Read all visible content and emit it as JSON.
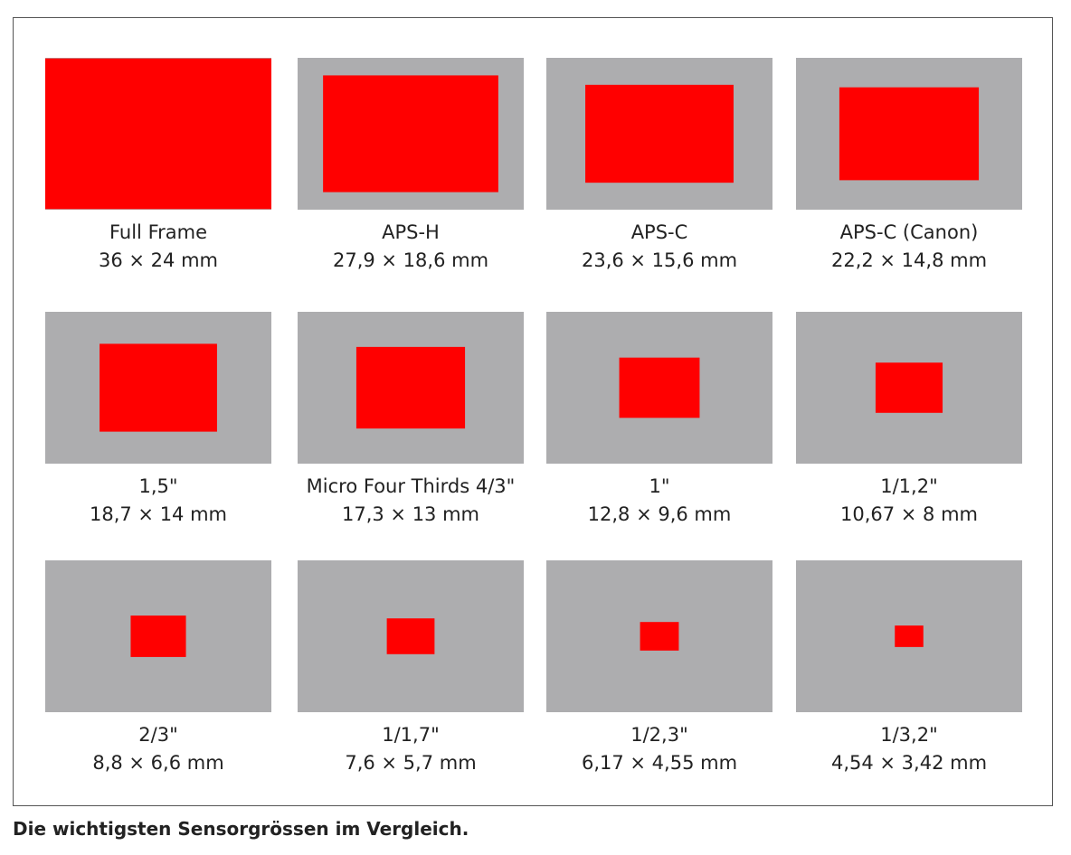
{
  "sensors": [
    {
      "name": "Full Frame",
      "size": "36 × 24 mm"
    },
    {
      "name": "APS-H",
      "size": "27,9 × 18,6 mm"
    },
    {
      "name": "APS-C",
      "size": "23,6 × 15,6 mm"
    },
    {
      "name": "APS-C (Canon)",
      "size": "22,2 × 14,8 mm"
    },
    {
      "name": "1,5\"",
      "size": "18,7 × 14 mm"
    },
    {
      "name": "Micro Four Thirds 4/3\"",
      "size": "17,3 × 13 mm"
    },
    {
      "name": "1\"",
      "size": "12,8 × 9,6 mm"
    },
    {
      "name": "1/1,2\"",
      "size": "10,67 × 8 mm"
    },
    {
      "name": "2/3\"",
      "size": "8,8 × 6,6 mm"
    },
    {
      "name": "1/1,7\"",
      "size": "7,6 × 5,7 mm"
    },
    {
      "name": "1/2,3\"",
      "size": "6,17 × 4,55 mm"
    },
    {
      "name": "1/3,2\"",
      "size": "4,54 × 3,42 mm"
    }
  ],
  "caption": "Die wichtigsten Sensorgrössen im Vergleich."
}
